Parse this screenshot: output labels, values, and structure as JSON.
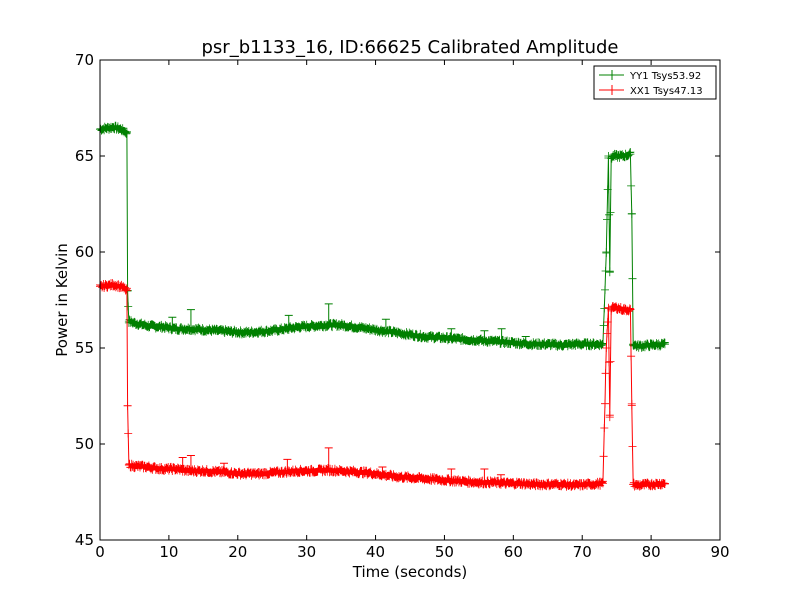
{
  "chart_data": {
    "type": "line",
    "title": "psr_b1133_16, ID:66625 Calibrated Amplitude",
    "xlabel": "Time (seconds)",
    "ylabel": "Power in Kelvin",
    "xlim": [
      0,
      90
    ],
    "ylim": [
      45,
      70
    ],
    "xticks": [
      0,
      10,
      20,
      30,
      40,
      50,
      60,
      70,
      80,
      90
    ],
    "yticks": [
      45,
      50,
      55,
      60,
      65,
      70
    ],
    "grid": false,
    "legend_position": "top-right",
    "marker": "+",
    "series": [
      {
        "name": "YY1 Tsys53.92",
        "color": "#008000",
        "x": [
          0,
          1,
          2,
          3,
          3.5,
          3.9,
          4.0,
          4.2,
          5,
          7,
          9,
          11,
          13,
          15,
          17,
          19,
          21,
          23,
          25,
          27,
          29,
          31,
          33,
          35,
          37,
          39,
          41,
          43,
          45,
          47,
          49,
          51,
          53,
          55,
          57,
          59,
          61,
          63,
          65,
          67,
          69,
          71,
          73,
          73.5,
          73.8,
          74.0,
          74.2,
          74.5,
          75,
          76,
          77,
          77.2,
          77.4,
          78,
          80,
          82
        ],
        "y": [
          66.4,
          66.45,
          66.5,
          66.4,
          66.3,
          66.2,
          58.0,
          56.4,
          56.3,
          56.15,
          56.1,
          56.0,
          56.0,
          55.95,
          55.9,
          55.85,
          55.8,
          55.85,
          55.9,
          56.0,
          56.1,
          56.15,
          56.2,
          56.2,
          56.1,
          56.0,
          55.9,
          55.8,
          55.7,
          55.6,
          55.55,
          55.5,
          55.45,
          55.4,
          55.35,
          55.3,
          55.25,
          55.2,
          55.2,
          55.15,
          55.2,
          55.2,
          55.2,
          60.0,
          65.0,
          59.0,
          64.9,
          65.0,
          65.0,
          65.0,
          65.1,
          62.0,
          55.2,
          55.1,
          55.15,
          55.2
        ]
      },
      {
        "name": "XX1 Tsys47.13",
        "color": "#ff0000",
        "x": [
          0,
          1,
          2,
          3,
          3.5,
          3.9,
          4.0,
          4.2,
          5,
          7,
          9,
          11,
          13,
          15,
          17,
          19,
          21,
          23,
          25,
          27,
          29,
          31,
          33,
          35,
          37,
          39,
          41,
          43,
          45,
          47,
          49,
          51,
          53,
          55,
          57,
          59,
          61,
          63,
          65,
          67,
          69,
          71,
          73,
          73.5,
          73.8,
          74.0,
          74.2,
          74.5,
          75,
          76,
          77,
          77.2,
          77.4,
          78,
          80,
          82
        ],
        "y": [
          58.2,
          58.25,
          58.3,
          58.2,
          58.1,
          58.0,
          52.0,
          48.9,
          48.85,
          48.8,
          48.7,
          48.7,
          48.6,
          48.6,
          48.55,
          48.5,
          48.45,
          48.45,
          48.5,
          48.55,
          48.6,
          48.6,
          48.65,
          48.6,
          48.55,
          48.5,
          48.4,
          48.3,
          48.25,
          48.2,
          48.15,
          48.1,
          48.05,
          48.0,
          48.0,
          47.95,
          47.95,
          47.9,
          47.9,
          47.9,
          47.85,
          47.9,
          47.95,
          55.0,
          57.1,
          51.5,
          57.0,
          57.1,
          57.1,
          57.0,
          57.0,
          52.0,
          47.9,
          47.85,
          47.9,
          47.95
        ]
      }
    ]
  }
}
